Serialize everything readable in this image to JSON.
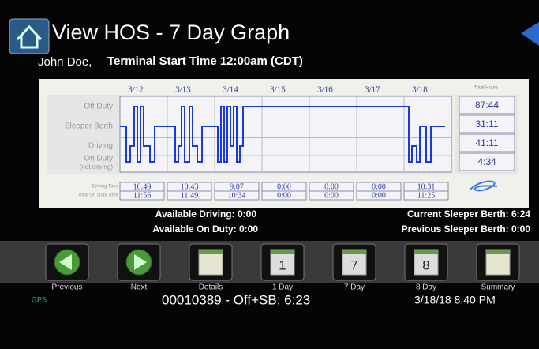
{
  "header": {
    "title": "View HOS - 7 Day Graph",
    "driver": "John Doe,",
    "terminal": "Terminal Start Time 12:00am (CDT)"
  },
  "graph": {
    "dates": [
      "3/12",
      "3/13",
      "3/14",
      "3/15",
      "3/16",
      "3/17",
      "3/18"
    ],
    "total_label": "Total Hours",
    "statuses": [
      "Off Duty",
      "Sleeper Berth",
      "Driving",
      "On Duty"
    ],
    "status_note": "(not driving)",
    "totals": [
      "87:44",
      "31:11",
      "41:11",
      "4:34"
    ]
  },
  "table": {
    "row_labels": [
      "Driving Time",
      "Total On Duty Time"
    ],
    "rows": [
      [
        "10:49",
        "10:43",
        "9:07",
        "0:00",
        "0:00",
        "0:00",
        "10:31"
      ],
      [
        "11:56",
        "11:49",
        "10:34",
        "0:00",
        "0:00",
        "0:00",
        "11:25"
      ]
    ]
  },
  "summary": {
    "available_driving": "Available Driving: 0:00",
    "available_on_duty": "Available On Duty: 0:00",
    "current_sleeper": "Current Sleeper Berth: 6:24",
    "previous_sleeper": "Previous Sleeper Berth: 0:00"
  },
  "buttons": [
    {
      "label": "Previous"
    },
    {
      "label": "Next"
    },
    {
      "label": "Details"
    },
    {
      "label": "1 Day",
      "icon": "1"
    },
    {
      "label": "7 Day",
      "icon": "7"
    },
    {
      "label": "8 Day",
      "icon": "8"
    },
    {
      "label": "Summary"
    }
  ],
  "footer": {
    "gps": "GPS",
    "status": "00010389 - Off+SB: 6:23",
    "datetime": "3/18/18 8:40 PM"
  }
}
